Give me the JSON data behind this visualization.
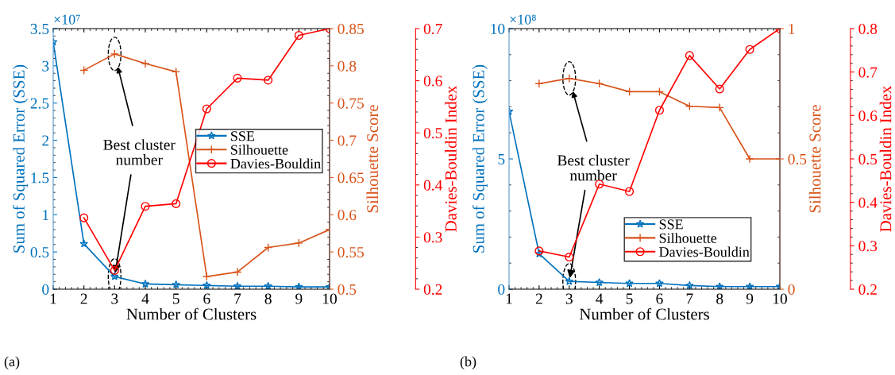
{
  "chart_data": [
    {
      "type": "line",
      "xlabel": "Number of Clusters",
      "ylabel": "Sum of Squared Error (SSE)",
      "y2label": "Silhouette Score",
      "y3label": "Davies-Bouldin Index",
      "x": [
        1,
        2,
        3,
        4,
        5,
        6,
        7,
        8,
        9,
        10
      ],
      "xlim": [
        1,
        10
      ],
      "xticks": [
        1,
        2,
        3,
        4,
        5,
        6,
        7,
        8,
        9,
        10
      ],
      "ylim": [
        0,
        3.5
      ],
      "yticks": [
        0,
        0.5,
        1,
        1.5,
        2,
        2.5,
        3,
        3.5
      ],
      "y2lim": [
        0.5,
        0.85
      ],
      "y2ticks": [
        0.5,
        0.55,
        0.6,
        0.65,
        0.7,
        0.75,
        0.8,
        0.85
      ],
      "y3lim": [
        0.2,
        0.7
      ],
      "y3ticks": [
        0.2,
        0.3,
        0.4,
        0.5,
        0.6,
        0.7
      ],
      "grid": false,
      "legend": "right",
      "series": [
        {
          "name": "SSE",
          "color": "#0072bd",
          "axis": "y",
          "marker": "star",
          "values": [
            3.32,
            0.61,
            0.17,
            0.07,
            0.06,
            0.05,
            0.04,
            0.04,
            0.03,
            0.03
          ]
        },
        {
          "name": "Silhouette",
          "color": "#d95319",
          "axis": "y2",
          "marker": "cross",
          "values": [
            null,
            0.794,
            0.816,
            0.803,
            0.792,
            0.517,
            0.523,
            0.556,
            0.562,
            0.58
          ]
        },
        {
          "name": "Davies-Bouldin",
          "color": "#ff0000",
          "axis": "y3",
          "marker": "circle",
          "values": [
            null,
            0.337,
            0.236,
            0.359,
            0.364,
            0.546,
            0.605,
            0.601,
            0.687,
            0.7
          ]
        }
      ],
      "annotations": [
        "×10⁷",
        "(a)",
        {
          "text": "Best cluster\nnumber",
          "x": 3,
          "y": 0.17
        }
      ]
    },
    {
      "type": "line",
      "xlabel": "Number of Clusters",
      "ylabel": "Sum of Squared Error (SSE)",
      "y2label": "Silhouette Score",
      "y3label": "Davies-Bouldin Index",
      "x": [
        1,
        2,
        3,
        4,
        5,
        6,
        7,
        8,
        9,
        10
      ],
      "xlim": [
        1,
        10
      ],
      "xticks": [
        1,
        2,
        3,
        4,
        5,
        6,
        7,
        8,
        9,
        10
      ],
      "ylim": [
        0,
        10
      ],
      "yticks": [
        0,
        5,
        10
      ],
      "y2lim": [
        0,
        1
      ],
      "y2ticks": [
        0,
        0.5,
        1
      ],
      "y3lim": [
        0.2,
        0.8
      ],
      "y3ticks": [
        0.2,
        0.3,
        0.4,
        0.5,
        0.6,
        0.7,
        0.8
      ],
      "grid": false,
      "legend": "bottom right",
      "series": [
        {
          "name": "SSE",
          "color": "#0072bd",
          "axis": "y",
          "marker": "star",
          "values": [
            6.82,
            1.36,
            0.3,
            0.26,
            0.22,
            0.22,
            0.14,
            0.1,
            0.1,
            0.1
          ]
        },
        {
          "name": "Silhouette",
          "color": "#d95319",
          "axis": "y2",
          "marker": "cross",
          "values": [
            null,
            0.789,
            0.809,
            0.789,
            0.758,
            0.758,
            0.702,
            0.697,
            0.5,
            0.5
          ]
        },
        {
          "name": "Davies-Bouldin",
          "color": "#ff0000",
          "axis": "y3",
          "marker": "circle",
          "values": [
            null,
            0.288,
            0.274,
            0.442,
            0.425,
            0.612,
            0.738,
            0.661,
            0.752,
            0.8
          ]
        }
      ],
      "annotations": [
        "×10⁸",
        "(b)",
        {
          "text": "Best cluster\nnumber",
          "x": 3,
          "y": 0.3
        }
      ]
    }
  ]
}
